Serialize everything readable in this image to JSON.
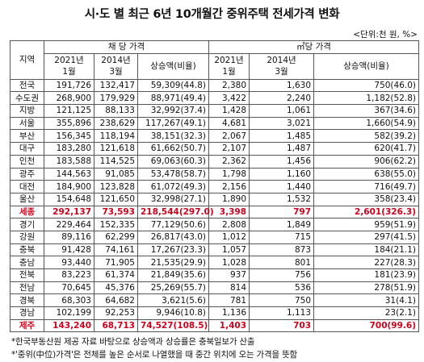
{
  "title": "시·도 별 최근 6년 10개월간 중위주택 전세가격 변화",
  "unit": "<단위:천 원, %>",
  "header": {
    "region": "지역",
    "groups": [
      "채 당 가격",
      "㎡당 가격"
    ],
    "columns": [
      "2021년\n1월",
      "2014년\n3월",
      "상승액(비율)",
      "2021년\n1월",
      "2014년\n3월",
      "상승액(비율)"
    ]
  },
  "table": {
    "rows": [
      [
        "전국",
        "191,726",
        "132,417",
        "59,309(44.8)",
        "2,380",
        "1,630",
        "750(46.0)"
      ],
      [
        "수도권",
        "268,900",
        "179,929",
        "88,971(49.4)",
        "3,422",
        "2,240",
        "1,182(52.8)"
      ],
      [
        "지방",
        "121,125",
        "88,133",
        "32,992(37.4)",
        "1,428",
        "1,061",
        "367(34.6)"
      ],
      [
        "서울",
        "355,896",
        "238,629",
        "117,267(49.1)",
        "4,681",
        "3,021",
        "1,660(54.9)"
      ],
      [
        "부산",
        "156,345",
        "118,194",
        "38,151(32.3)",
        "2,067",
        "1,485",
        "582(39.2)"
      ],
      [
        "대구",
        "183,280",
        "121,618",
        "61,662(50.7)",
        "2,107",
        "1,487",
        "620(41.7)"
      ],
      [
        "인천",
        "183,588",
        "114,525",
        "69,063(60.3)",
        "2,362",
        "1,456",
        "906(62.2)"
      ],
      [
        "광주",
        "144,563",
        "91,085",
        "53,478(58.7)",
        "1,798",
        "1,160",
        "638(55.0)"
      ],
      [
        "대전",
        "184,900",
        "123,828",
        "61,072(49.3)",
        "2,156",
        "1,440",
        "716(49.7)"
      ],
      [
        "울산",
        "154,648",
        "121,650",
        "32,998(27.1)",
        "1,890",
        "1,532",
        "358(23.4)"
      ],
      [
        "세종",
        "292,137",
        "73,593",
        "218,544(297.0)",
        "3,398",
        "797",
        "2,601(326.3)"
      ],
      [
        "경기",
        "229,464",
        "152,335",
        "77,129(50.6)",
        "2,808",
        "1,849",
        "959(51.9)"
      ],
      [
        "강원",
        "89,116",
        "62,299",
        "26,817(43.0)",
        "1,012",
        "715",
        "297(41.5)"
      ],
      [
        "충북",
        "91,428",
        "74,161",
        "17,267(23.3)",
        "1,057",
        "873",
        "184(21.1)"
      ],
      [
        "충남",
        "93,440",
        "71,905",
        "21,535(29.9)",
        "1,028",
        "801",
        "227(28.3)"
      ],
      [
        "전북",
        "83,223",
        "61,374",
        "21,849(35.6)",
        "937",
        "756",
        "181(23.9)"
      ],
      [
        "전남",
        "70,645",
        "45,376",
        "25,269(55.7)",
        "814",
        "536",
        "278(51.9)"
      ],
      [
        "경북",
        "68,303",
        "64,682",
        "3,621(5.6)",
        "781",
        "750",
        "31(4.1)"
      ],
      [
        "경남",
        "102,199",
        "92,253",
        "9,946(10.8)",
        "1,136",
        "1,113",
        "23(2.1)"
      ],
      [
        "제주",
        "143,240",
        "68,713",
        "74,527(108.5)",
        "1,403",
        "703",
        "700(99.6)"
      ]
    ]
  },
  "notes": [
    "*한국부동산원 제공 자료 바탕으로 상승액과 상승률은 충북일보가 산출",
    "*'중위(中位)가격'은 전체를 높은 순서로 나열했을 때 중간 위치에 오는 가격을 뜻함"
  ]
}
